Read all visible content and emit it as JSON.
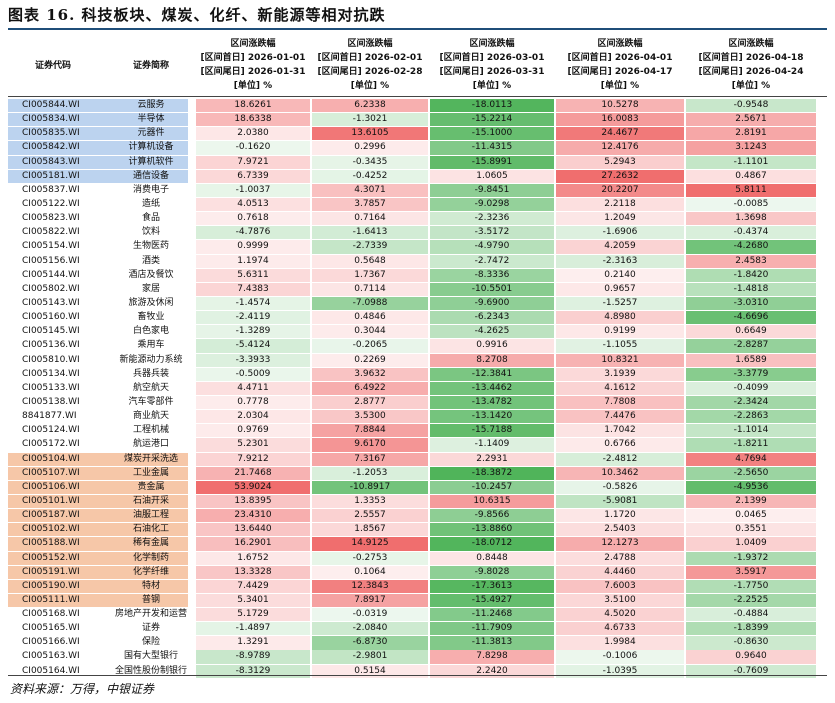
{
  "title": "图表 16. 科技板块、煤炭、化纤、新能源等相对抗跌",
  "headers": {
    "code": "证券代码",
    "name": "证券简称",
    "periods": [
      {
        "l1": "区间涨跌幅",
        "l2": "[区间首日] 2026-01-01",
        "l3": "[区间尾日] 2026-01-31",
        "l4": "[单位] %"
      },
      {
        "l1": "区间涨跌幅",
        "l2": "[区间首日] 2026-02-01",
        "l3": "[区间尾日] 2026-02-28",
        "l4": "[单位] %"
      },
      {
        "l1": "区间涨跌幅",
        "l2": "[区间首日] 2026-03-01",
        "l3": "[区间尾日] 2026-03-31",
        "l4": "[单位] %"
      },
      {
        "l1": "区间涨跌幅",
        "l2": "[区间首日] 2026-04-01",
        "l3": "[区间尾日] 2026-04-17",
        "l4": "[单位] %"
      },
      {
        "l1": "区间涨跌幅",
        "l2": "[区间首日] 2026-04-18",
        "l3": "[区间尾日] 2026-04-24",
        "l4": "[单位] %"
      }
    ]
  },
  "colors": {
    "tech_group": "#bcd3ef",
    "coal_group": "#f6c7a8",
    "positive": "#f08080",
    "negative": "#5cb85c"
  },
  "rows": [
    {
      "code": "CI005844.WI",
      "name": "云服务",
      "group": "tech",
      "values": [
        "18.6261",
        "6.2338",
        "-18.0113",
        "10.5278",
        "-0.9548"
      ]
    },
    {
      "code": "CI005834.WI",
      "name": "半导体",
      "group": "tech",
      "values": [
        "18.6338",
        "-1.3021",
        "-15.2214",
        "16.0083",
        "2.5671"
      ]
    },
    {
      "code": "CI005835.WI",
      "name": "元器件",
      "group": "tech",
      "values": [
        "2.0380",
        "13.6105",
        "-15.1000",
        "24.4677",
        "2.8191"
      ]
    },
    {
      "code": "CI005842.WI",
      "name": "计算机设备",
      "group": "tech",
      "values": [
        "-0.1620",
        "0.2996",
        "-11.4315",
        "12.4176",
        "3.1243"
      ]
    },
    {
      "code": "CI005843.WI",
      "name": "计算机软件",
      "group": "tech",
      "values": [
        "7.9721",
        "-0.3435",
        "-15.8991",
        "5.2943",
        "-1.1101"
      ]
    },
    {
      "code": "CI005181.WI",
      "name": "通信设备",
      "group": "tech",
      "values": [
        "6.7339",
        "-0.4252",
        "1.0605",
        "27.2632",
        "0.4867"
      ]
    },
    {
      "code": "CI005837.WI",
      "name": "消费电子",
      "group": "",
      "values": [
        "-1.0037",
        "4.3071",
        "-9.8451",
        "20.2207",
        "5.8111"
      ]
    },
    {
      "code": "CI005122.WI",
      "name": "造纸",
      "group": "",
      "values": [
        "4.0513",
        "3.7857",
        "-9.0298",
        "2.2118",
        "-0.0085"
      ]
    },
    {
      "code": "CI005823.WI",
      "name": "食品",
      "group": "",
      "values": [
        "0.7618",
        "0.7164",
        "-2.3236",
        "1.2049",
        "1.3698"
      ]
    },
    {
      "code": "CI005822.WI",
      "name": "饮料",
      "group": "",
      "values": [
        "-4.7876",
        "-1.6413",
        "-3.5172",
        "-1.6906",
        "-0.4374"
      ]
    },
    {
      "code": "CI005154.WI",
      "name": "生物医药",
      "group": "",
      "values": [
        "0.9999",
        "-2.7339",
        "-4.9790",
        "4.2059",
        "-4.2680"
      ]
    },
    {
      "code": "CI005156.WI",
      "name": "酒类",
      "group": "",
      "values": [
        "1.1974",
        "0.5648",
        "-2.7472",
        "-2.3163",
        "2.4583"
      ]
    },
    {
      "code": "CI005144.WI",
      "name": "酒店及餐饮",
      "group": "",
      "values": [
        "5.6311",
        "1.7367",
        "-8.3336",
        "0.2140",
        "-1.8420"
      ]
    },
    {
      "code": "CI005802.WI",
      "name": "家居",
      "group": "",
      "values": [
        "7.4383",
        "0.7114",
        "-10.5501",
        "0.9657",
        "-1.4818"
      ]
    },
    {
      "code": "CI005143.WI",
      "name": "旅游及休闲",
      "group": "",
      "values": [
        "-1.4574",
        "-7.0988",
        "-9.6900",
        "-1.5257",
        "-3.0310"
      ]
    },
    {
      "code": "CI005160.WI",
      "name": "畜牧业",
      "group": "",
      "values": [
        "-2.4119",
        "0.4846",
        "-6.2343",
        "4.8980",
        "-4.6696"
      ]
    },
    {
      "code": "CI005145.WI",
      "name": "白色家电",
      "group": "",
      "values": [
        "-1.3289",
        "0.3044",
        "-4.2625",
        "0.9199",
        "0.6649"
      ]
    },
    {
      "code": "CI005136.WI",
      "name": "乘用车",
      "group": "",
      "values": [
        "-5.4124",
        "-0.2065",
        "0.9916",
        "-1.1055",
        "-2.8287"
      ]
    },
    {
      "code": "CI005810.WI",
      "name": "新能源动力系统",
      "group": "",
      "values": [
        "-3.3933",
        "0.2269",
        "8.2708",
        "10.8321",
        "1.6589"
      ]
    },
    {
      "code": "CI005134.WI",
      "name": "兵器兵装",
      "group": "",
      "values": [
        "-0.5009",
        "3.9632",
        "-12.3841",
        "3.1939",
        "-3.3779"
      ]
    },
    {
      "code": "CI005133.WI",
      "name": "航空航天",
      "group": "",
      "values": [
        "4.4711",
        "6.4922",
        "-13.4462",
        "4.1612",
        "-0.4099"
      ]
    },
    {
      "code": "CI005138.WI",
      "name": "汽车零部件",
      "group": "",
      "values": [
        "0.7778",
        "2.8777",
        "-13.4782",
        "7.7808",
        "-2.3424"
      ]
    },
    {
      "code": "8841877.WI",
      "name": "商业航天",
      "group": "",
      "values": [
        "2.0304",
        "3.5300",
        "-13.1420",
        "7.4476",
        "-2.2863"
      ]
    },
    {
      "code": "CI005124.WI",
      "name": "工程机械",
      "group": "",
      "values": [
        "0.9769",
        "7.8844",
        "-15.7188",
        "1.7042",
        "-1.1014"
      ]
    },
    {
      "code": "CI005172.WI",
      "name": "航运港口",
      "group": "",
      "values": [
        "5.2301",
        "9.6170",
        "-1.1409",
        "0.6766",
        "-1.8211"
      ]
    },
    {
      "code": "CI005104.WI",
      "name": "煤炭开采洗选",
      "group": "coal",
      "values": [
        "7.9212",
        "7.3167",
        "2.2931",
        "-2.4812",
        "4.7694"
      ]
    },
    {
      "code": "CI005107.WI",
      "name": "工业金属",
      "group": "coal",
      "values": [
        "21.7468",
        "-1.2053",
        "-18.3872",
        "10.3462",
        "-2.5650"
      ]
    },
    {
      "code": "CI005106.WI",
      "name": "贵金属",
      "group": "coal",
      "values": [
        "53.9024",
        "-10.8917",
        "-10.2457",
        "-0.5826",
        "-4.9536"
      ]
    },
    {
      "code": "CI005101.WI",
      "name": "石油开采",
      "group": "coal",
      "values": [
        "13.8395",
        "1.3353",
        "10.6315",
        "-5.9081",
        "2.1399"
      ]
    },
    {
      "code": "CI005187.WI",
      "name": "油服工程",
      "group": "coal",
      "values": [
        "23.4310",
        "2.5557",
        "-9.8566",
        "1.1720",
        "0.0465"
      ]
    },
    {
      "code": "CI005102.WI",
      "name": "石油化工",
      "group": "coal",
      "values": [
        "13.6440",
        "1.8567",
        "-13.8860",
        "2.5403",
        "0.3551"
      ]
    },
    {
      "code": "CI005188.WI",
      "name": "稀有金属",
      "group": "coal",
      "values": [
        "16.2901",
        "14.9125",
        "-18.0712",
        "12.1273",
        "1.0409"
      ]
    },
    {
      "code": "CI005152.WI",
      "name": "化学制药",
      "group": "coal",
      "values": [
        "1.6752",
        "-0.2753",
        "0.8448",
        "2.4788",
        "-1.9372"
      ]
    },
    {
      "code": "CI005191.WI",
      "name": "化学纤维",
      "group": "coal",
      "values": [
        "13.3328",
        "0.1064",
        "-9.8028",
        "4.4460",
        "3.5917"
      ]
    },
    {
      "code": "CI005190.WI",
      "name": "特材",
      "group": "coal",
      "values": [
        "7.4429",
        "12.3843",
        "-17.3613",
        "7.6003",
        "-1.7750"
      ]
    },
    {
      "code": "CI005111.WI",
      "name": "普钢",
      "group": "coal",
      "values": [
        "5.3401",
        "7.8917",
        "-15.4927",
        "3.5100",
        "-2.2525"
      ]
    },
    {
      "code": "CI005168.WI",
      "name": "房地产开发和运营",
      "group": "",
      "values": [
        "5.1729",
        "-0.0319",
        "-11.2468",
        "4.5020",
        "-0.4884"
      ]
    },
    {
      "code": "CI005165.WI",
      "name": "证券",
      "group": "",
      "values": [
        "-1.4897",
        "-2.0840",
        "-11.7909",
        "4.6733",
        "-1.8399"
      ]
    },
    {
      "code": "CI005166.WI",
      "name": "保险",
      "group": "",
      "values": [
        "1.3291",
        "-6.8730",
        "-11.3813",
        "1.9984",
        "-0.8630"
      ]
    },
    {
      "code": "CI005163.WI",
      "name": "国有大型银行",
      "group": "",
      "values": [
        "-8.9789",
        "-2.9801",
        "7.8298",
        "-0.1006",
        "0.9640"
      ]
    },
    {
      "code": "CI005164.WI",
      "name": "全国性股份制银行",
      "group": "",
      "values": [
        "-8.3129",
        "0.5154",
        "2.2420",
        "-1.0395",
        "-0.7609"
      ]
    }
  ],
  "source": "资料来源：万得，中银证券"
}
